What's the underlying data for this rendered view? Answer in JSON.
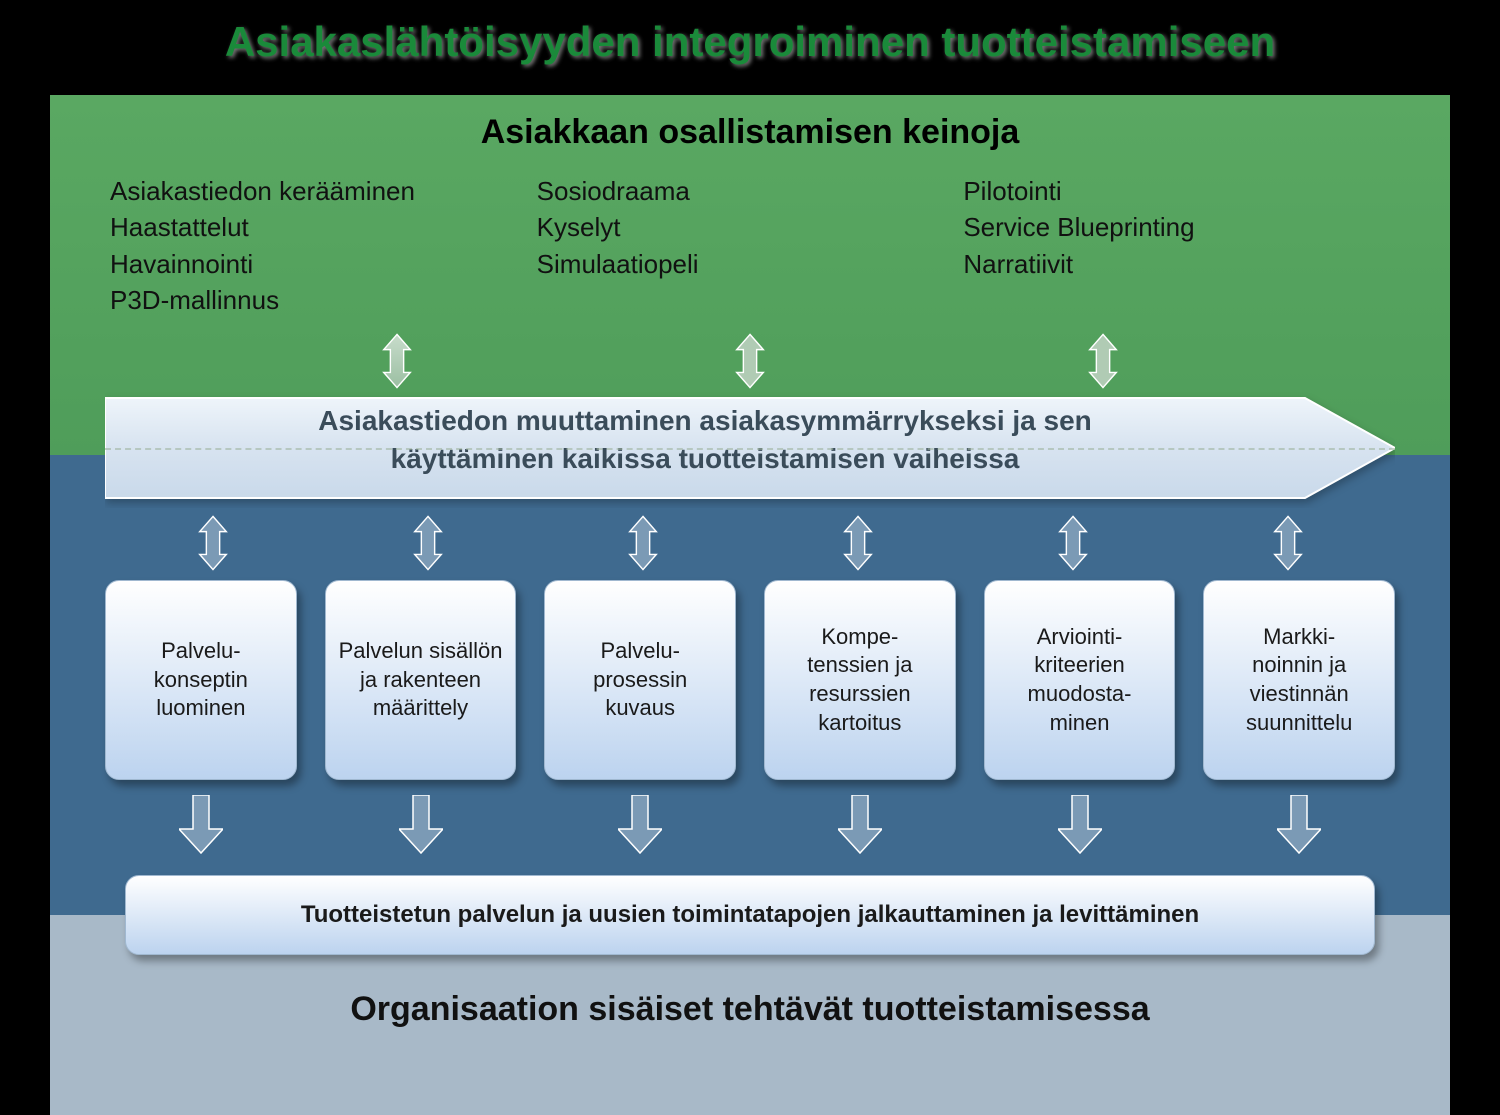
{
  "colors": {
    "title": "#1a8a3a",
    "green_bg_top": "#5aa862",
    "green_bg_bottom": "#4f9d5a",
    "blue_bg": "#3f6a8f",
    "light_bg": "#a8b9c8",
    "card_bg_top": "#ffffff",
    "card_bg_bottom": "#bcd3ef",
    "card_border": "#a0b8d0",
    "arrow_fill": "#7b9ab5",
    "arrow_stroke": "#ffffff",
    "band_fill_top": "#e6eef6",
    "band_fill_bottom": "#cfdceb",
    "band_text": "#3a4c5a",
    "text_dark": "#111111"
  },
  "type": "flow-diagram",
  "title": "Asiakaslähtöisyyden integroiminen tuotteistamiseen",
  "green": {
    "heading": "Asiakkaan osallistamisen keinoja",
    "columns": [
      [
        "Asiakastiedon kerääminen",
        "Haastattelut",
        "Havainnointi",
        "P3D-mallinnus"
      ],
      [
        "Sosiodraama",
        "Kyselyt",
        "Simulaatiopeli"
      ],
      [
        "Pilotointi",
        "Service Blueprinting",
        "Narratiivit"
      ]
    ]
  },
  "band": {
    "line1": "Asiakastiedon muuttaminen asiakasymmärrykseksi ja sen",
    "line2": "käyttäminen kaikissa tuotteistamisen vaiheissa"
  },
  "cards": [
    "Palvelu-\nkonseptin luominen",
    "Palvelun sisällön ja rakenteen määrittely",
    "Palvelu-\nprosessin kuvaus",
    "Kompe-\ntenssien ja resurssien kartoitus",
    "Arviointi-\nkriteerien muodosta-\nminen",
    "Markki-\nnoinnin ja viestinnän suunnittelu"
  ],
  "widebar": "Tuotteistetun palvelun ja uusien toimintatapojen jalkauttaminen ja levittäminen",
  "footer": "Organisaation sisäiset tehtävät tuotteistamisessa"
}
